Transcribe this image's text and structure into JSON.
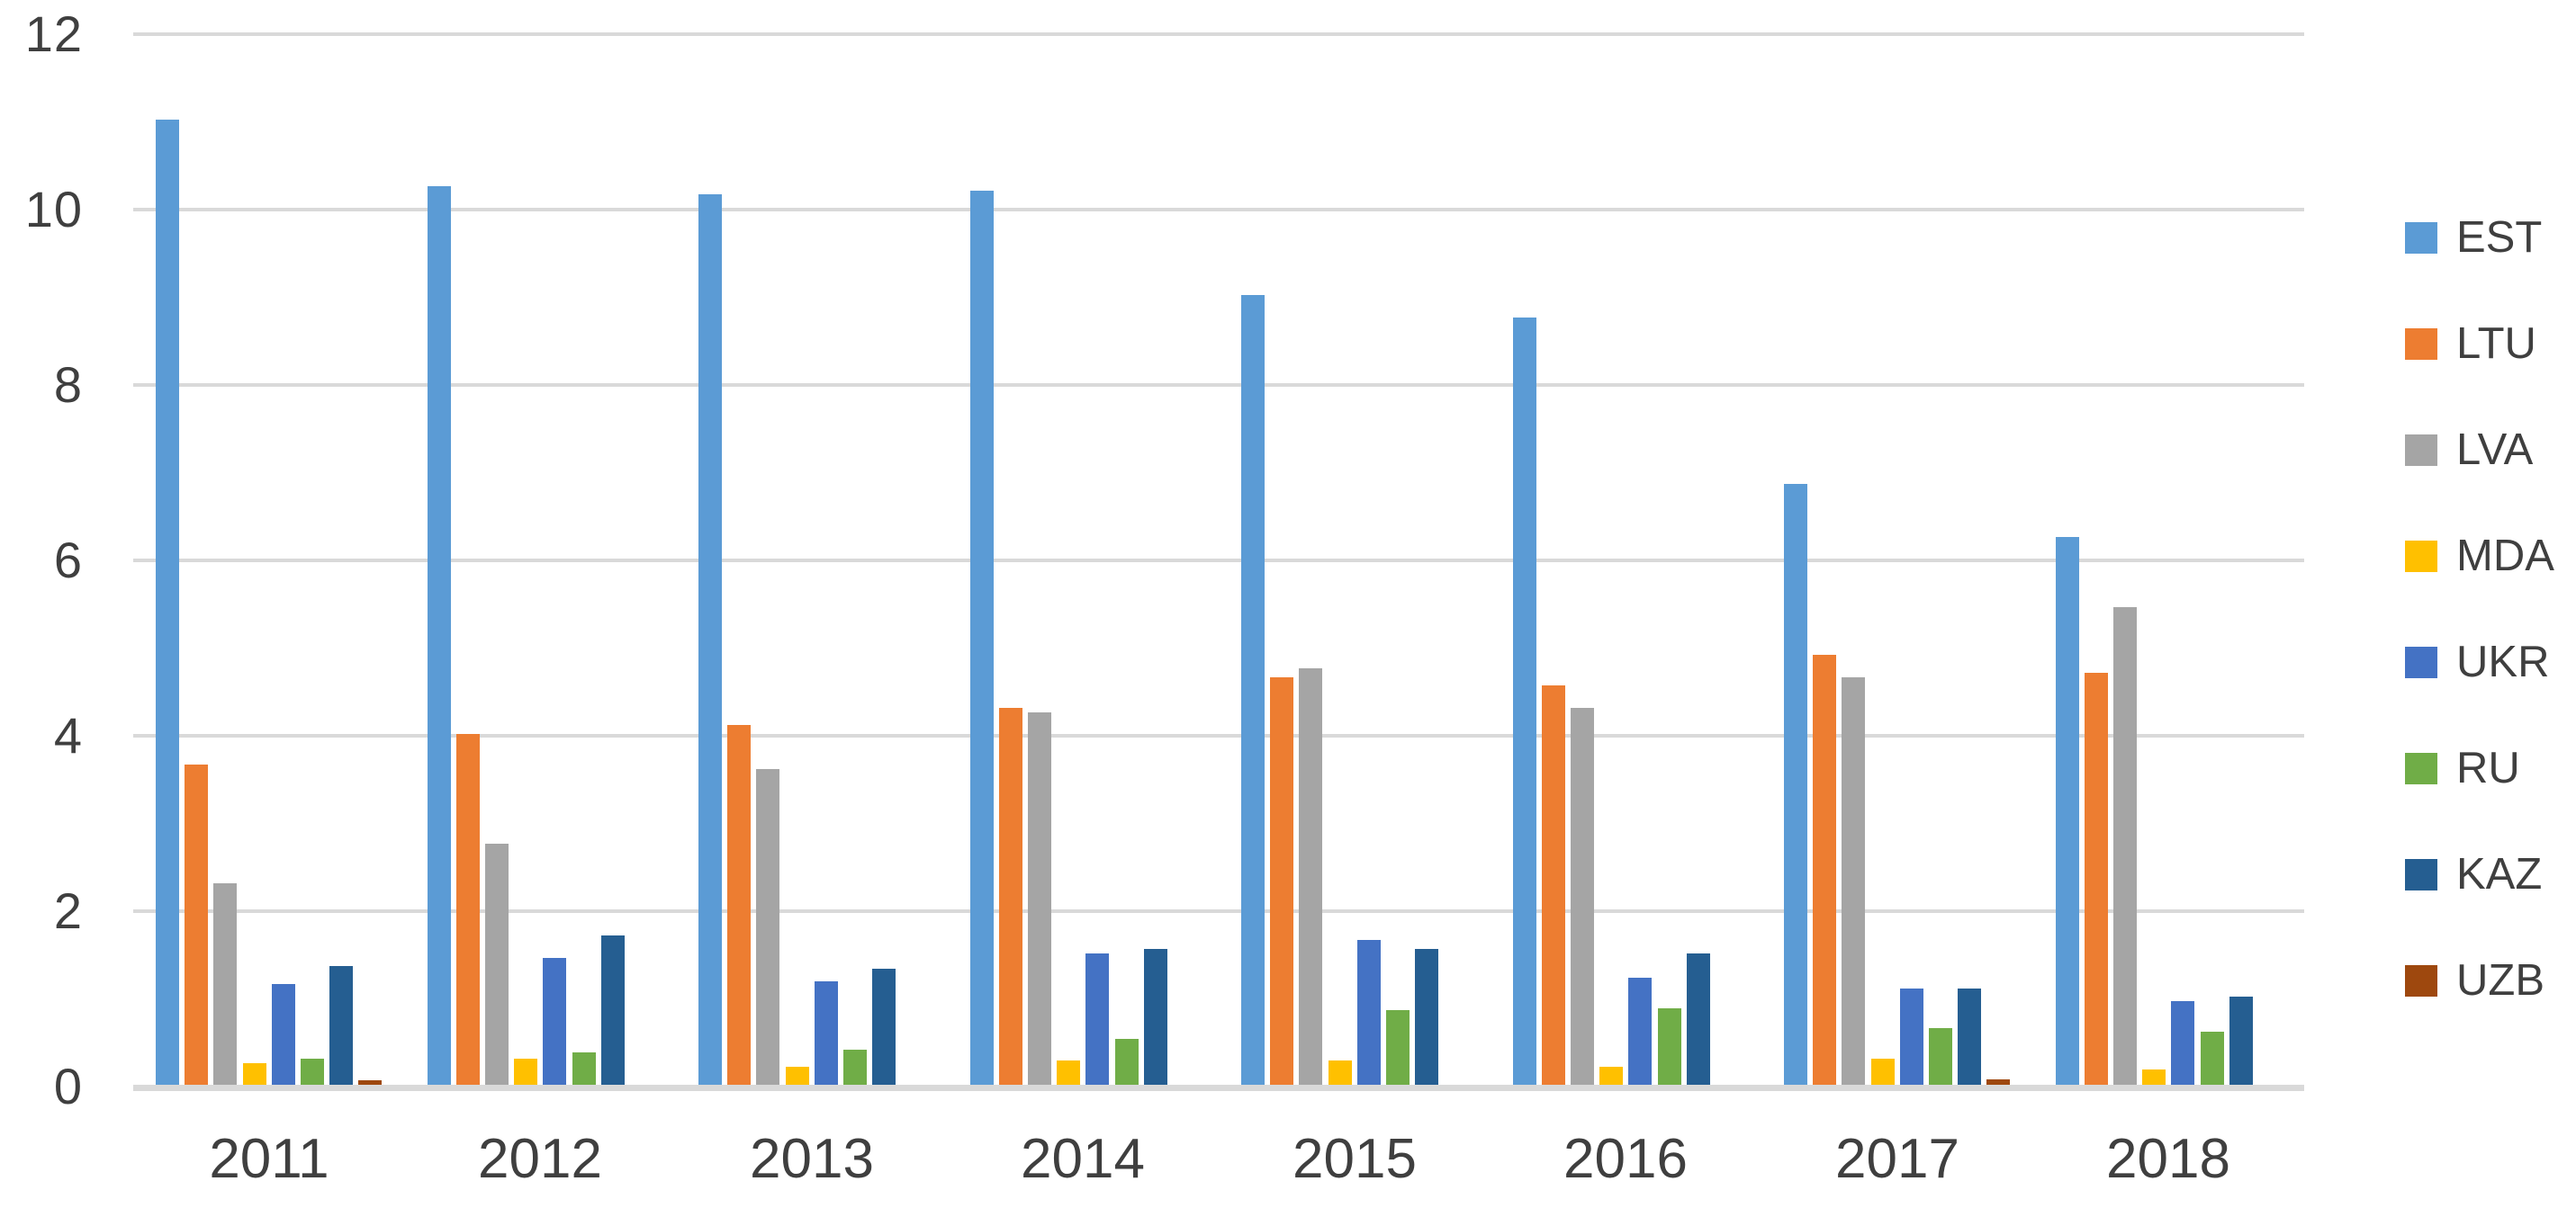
{
  "chart_data": {
    "type": "bar",
    "title": "",
    "categories": [
      "2011",
      "2012",
      "2013",
      "2014",
      "2015",
      "2016",
      "2017",
      "2018"
    ],
    "series": [
      {
        "name": "EST",
        "color": "#5B9BD5",
        "values": [
          11.0,
          10.25,
          10.15,
          10.2,
          9.0,
          8.75,
          6.85,
          6.25
        ]
      },
      {
        "name": "LTU",
        "color": "#ED7D31",
        "values": [
          3.65,
          4.0,
          4.1,
          4.3,
          4.65,
          4.55,
          4.9,
          4.7
        ]
      },
      {
        "name": "LVA",
        "color": "#A5A5A5",
        "values": [
          2.3,
          2.75,
          3.6,
          4.25,
          4.75,
          4.3,
          4.65,
          5.45
        ]
      },
      {
        "name": "MDA",
        "color": "#FFC000",
        "values": [
          0.25,
          0.3,
          0.2,
          0.28,
          0.28,
          0.2,
          0.3,
          0.17
        ]
      },
      {
        "name": "UKR",
        "color": "#4472C4",
        "values": [
          1.15,
          1.45,
          1.18,
          1.5,
          1.65,
          1.22,
          1.1,
          0.95
        ]
      },
      {
        "name": "RU",
        "color": "#70AD47",
        "values": [
          0.3,
          0.37,
          0.4,
          0.52,
          0.85,
          0.87,
          0.65,
          0.6
        ]
      },
      {
        "name": "KAZ",
        "color": "#255E91",
        "values": [
          1.35,
          1.7,
          1.32,
          1.55,
          1.55,
          1.5,
          1.1,
          1.0
        ]
      },
      {
        "name": "UZB",
        "color": "#9E480E",
        "values": [
          0.05,
          0,
          0,
          0,
          0,
          0,
          0.06,
          0
        ]
      }
    ],
    "xlabel": "",
    "ylabel": "",
    "ylim": [
      0,
      12
    ],
    "y_tick_step": 2,
    "y_tick_labels": [
      "0",
      "2",
      "4",
      "6",
      "8",
      "10",
      "12"
    ],
    "grid": true,
    "legend_position": "right",
    "legend_entries": [
      "EST",
      "LTU",
      "LVA",
      "MDA",
      "UKR",
      "RU",
      "KAZ",
      "UZB"
    ]
  },
  "colors": {
    "background": "#FFFFFF",
    "gridline": "#D9D9D9",
    "axis_line": "#D9D9D9",
    "tick_text": "#3F3F3F",
    "legend_text": "#3F3F3F"
  }
}
